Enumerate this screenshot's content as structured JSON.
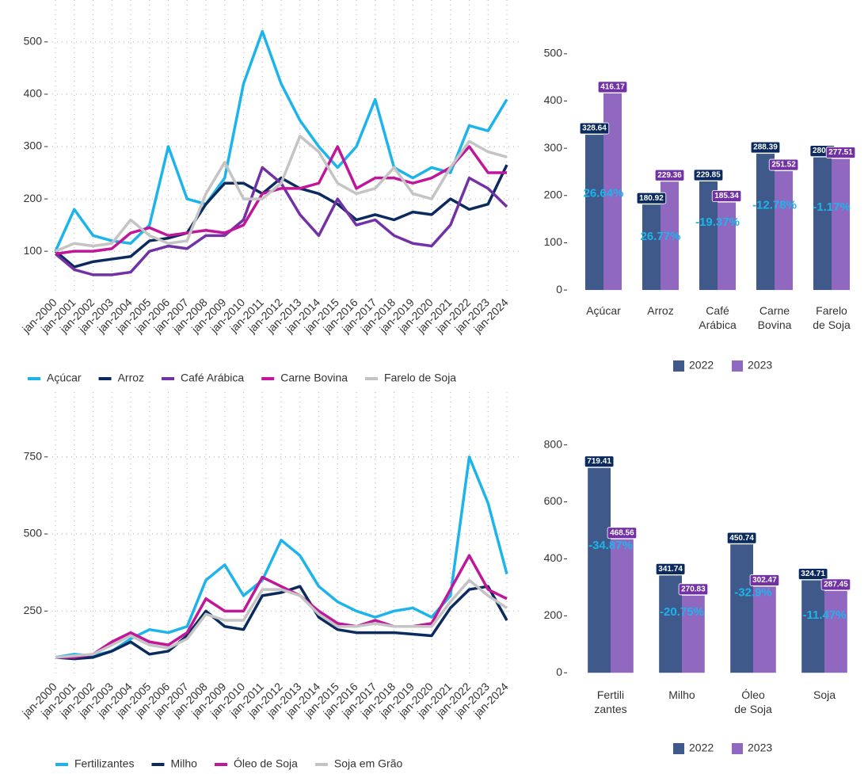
{
  "chart_data": [
    {
      "type": "line",
      "x": [
        "jan-2000",
        "jan-2001",
        "jan-2002",
        "jan-2003",
        "jan-2004",
        "jan-2005",
        "jan-2006",
        "jan-2007",
        "jan-2008",
        "jan-2009",
        "jan-2010",
        "jan-2011",
        "jan-2012",
        "jan-2013",
        "jan-2014",
        "jan-2015",
        "jan-2016",
        "jan-2017",
        "jan-2018",
        "jan-2019",
        "jan-2020",
        "jan-2021",
        "jan-2022",
        "jan-2023",
        "jan-2024"
      ],
      "series": [
        {
          "name": "Açúcar",
          "color": "#1cb4ea",
          "values": [
            100,
            180,
            130,
            120,
            115,
            150,
            300,
            200,
            190,
            240,
            420,
            520,
            420,
            350,
            300,
            260,
            300,
            390,
            260,
            240,
            260,
            250,
            340,
            330,
            390
          ]
        },
        {
          "name": "Arroz",
          "color": "#0b2a5e",
          "values": [
            100,
            70,
            80,
            85,
            90,
            120,
            125,
            135,
            190,
            230,
            230,
            210,
            240,
            220,
            210,
            190,
            160,
            170,
            160,
            175,
            170,
            200,
            180,
            190,
            265
          ]
        },
        {
          "name": "Café Arábica",
          "color": "#7232a6",
          "values": [
            95,
            65,
            55,
            55,
            60,
            100,
            110,
            105,
            130,
            130,
            160,
            260,
            230,
            170,
            130,
            200,
            150,
            160,
            130,
            115,
            110,
            150,
            240,
            220,
            185
          ]
        },
        {
          "name": "Carne Bovina",
          "color": "#c0169a",
          "values": [
            95,
            100,
            100,
            105,
            135,
            145,
            130,
            135,
            140,
            135,
            150,
            210,
            220,
            220,
            230,
            300,
            220,
            240,
            240,
            230,
            240,
            260,
            300,
            250,
            250
          ]
        },
        {
          "name": "Farelo de Soja",
          "color": "#c4c4c4",
          "values": [
            100,
            115,
            110,
            115,
            160,
            130,
            115,
            120,
            210,
            270,
            200,
            200,
            230,
            320,
            290,
            230,
            210,
            220,
            260,
            210,
            200,
            260,
            310,
            290,
            280
          ]
        }
      ],
      "ylim": [
        20,
        580
      ],
      "yticks": [
        100,
        200,
        300,
        400,
        500
      ],
      "grid": true
    },
    {
      "type": "bar",
      "categories": [
        "Açúcar",
        "Arroz",
        "Café\nArábica",
        "Carne\nBovina",
        "Farelo\nde Soja"
      ],
      "series": [
        {
          "name": "2022",
          "color": "#3f5a8a",
          "label_color": "#0b2a5e",
          "values": [
            328.64,
            180.92,
            229.85,
            288.39,
            280.8
          ]
        },
        {
          "name": "2023",
          "color": "#9068c0",
          "label_color": "#7232a6",
          "values": [
            416.17,
            229.36,
            185.34,
            251.52,
            277.51
          ]
        }
      ],
      "change_labels": [
        "26.64%",
        "26.77%",
        "-19.37%",
        "-12.78%",
        "-1.17%"
      ],
      "ylim": [
        -15,
        530
      ],
      "yticks": [
        0,
        100,
        200,
        300,
        400,
        500
      ]
    },
    {
      "type": "line",
      "x": [
        "jan-2000",
        "jan-2001",
        "jan-2002",
        "jan-2003",
        "jan-2004",
        "jan-2005",
        "jan-2006",
        "jan-2007",
        "jan-2008",
        "jan-2009",
        "jan-2010",
        "jan-2011",
        "jan-2012",
        "jan-2013",
        "jan-2014",
        "jan-2015",
        "jan-2016",
        "jan-2017",
        "jan-2018",
        "jan-2019",
        "jan-2020",
        "jan-2021",
        "jan-2022",
        "jan-2023",
        "jan-2024"
      ],
      "series": [
        {
          "name": "Fertilizantes",
          "color": "#1cb4ea",
          "values": [
            100,
            110,
            105,
            120,
            160,
            190,
            180,
            200,
            350,
            400,
            300,
            350,
            480,
            430,
            330,
            280,
            250,
            230,
            250,
            260,
            230,
            300,
            750,
            600,
            370
          ]
        },
        {
          "name": "Milho",
          "color": "#0b2a5e",
          "values": [
            100,
            95,
            100,
            120,
            150,
            110,
            120,
            170,
            250,
            200,
            190,
            300,
            310,
            330,
            230,
            190,
            180,
            180,
            180,
            175,
            170,
            260,
            320,
            330,
            220
          ]
        },
        {
          "name": "Óleo de Soja",
          "color": "#c0169a",
          "values": [
            100,
            100,
            110,
            150,
            180,
            150,
            140,
            180,
            290,
            250,
            250,
            360,
            330,
            300,
            250,
            210,
            200,
            220,
            200,
            200,
            210,
            320,
            430,
            320,
            290
          ]
        },
        {
          "name": "Soja em Grão",
          "color": "#c4c4c4",
          "values": [
            100,
            105,
            110,
            140,
            170,
            140,
            130,
            160,
            240,
            220,
            220,
            320,
            320,
            300,
            240,
            200,
            200,
            210,
            200,
            200,
            200,
            280,
            350,
            300,
            260
          ]
        }
      ],
      "ylim": [
        35,
        960
      ],
      "yticks": [
        250,
        500,
        750
      ],
      "grid": true
    },
    {
      "type": "bar",
      "categories": [
        "Fertili\nzantes",
        "Milho",
        "Óleo\nde Soja",
        "Soja"
      ],
      "series": [
        {
          "name": "2022",
          "color": "#3f5a8a",
          "label_color": "#0b2a5e",
          "values": [
            719.41,
            341.74,
            450.74,
            324.71
          ]
        },
        {
          "name": "2023",
          "color": "#9068c0",
          "label_color": "#7232a6",
          "values": [
            468.56,
            270.83,
            302.47,
            287.45
          ]
        }
      ],
      "change_labels": [
        "-34.87%",
        "-20.75%",
        "-32.9%",
        "-11.47%"
      ],
      "ylim": [
        -30,
        860
      ],
      "yticks": [
        0,
        200,
        400,
        600,
        800
      ]
    }
  ]
}
